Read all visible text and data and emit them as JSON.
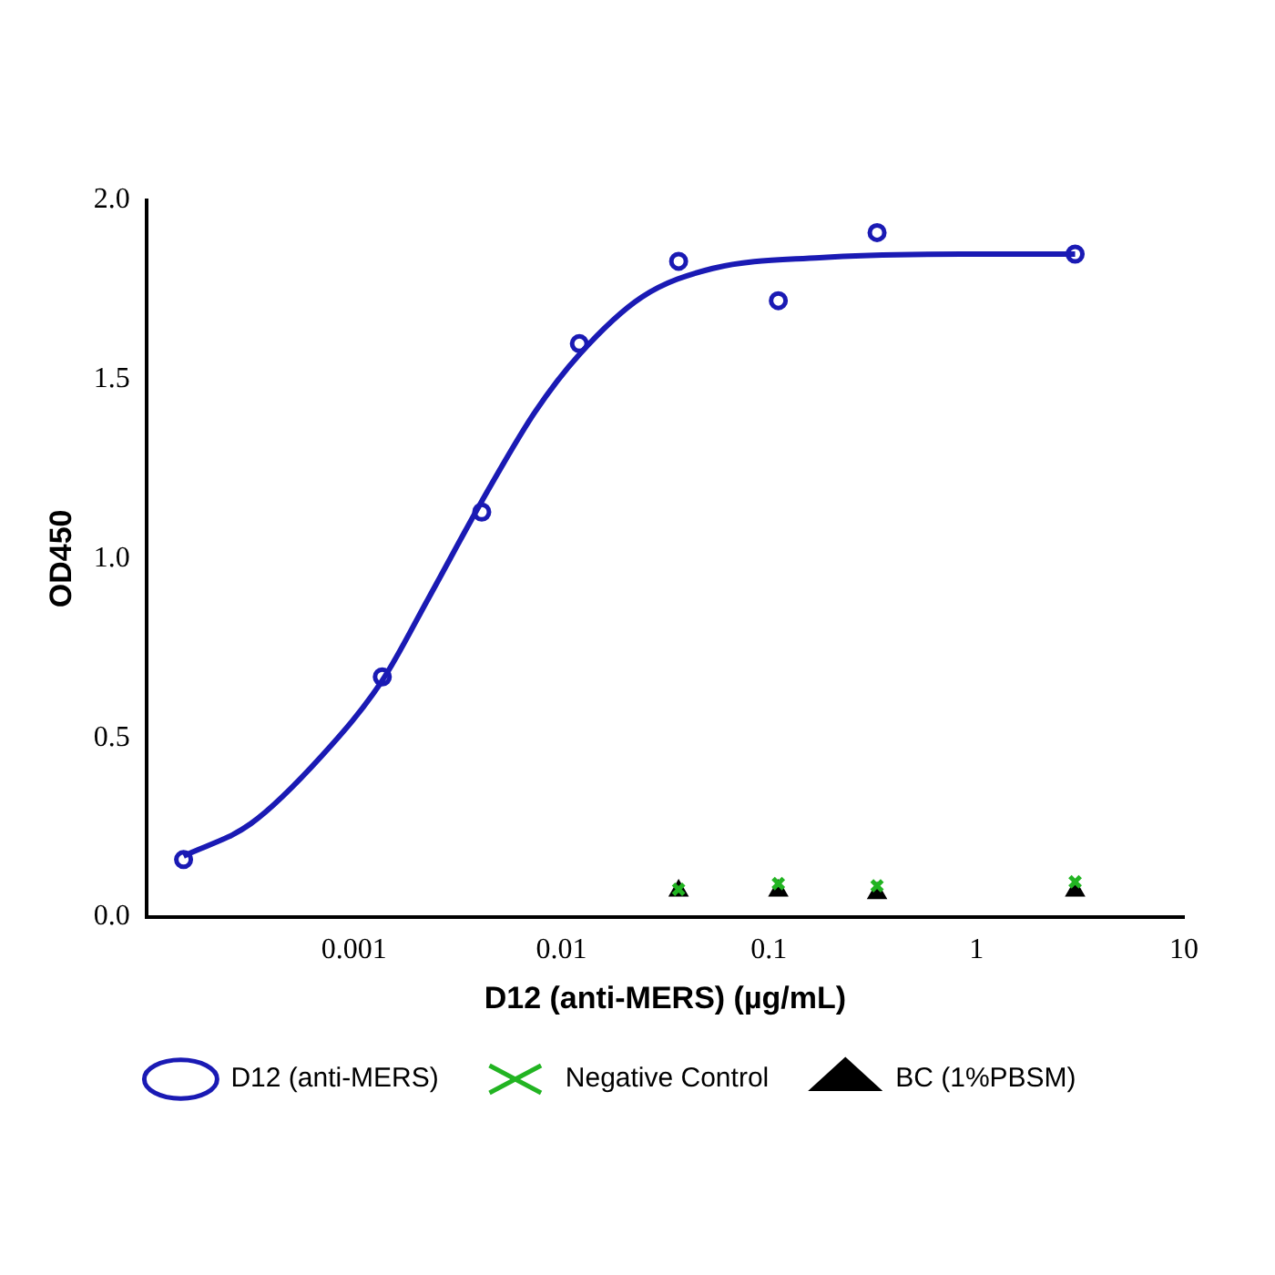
{
  "chart_data": {
    "type": "scatter",
    "xlabel": "D12 (anti-MERS) (µg/mL)",
    "ylabel": "OD450",
    "log": "x",
    "xlim": [
      0.0001,
      10
    ],
    "xticks": [
      0.001,
      0.01,
      0.1,
      1,
      10
    ],
    "ylim": [
      0,
      2
    ],
    "yticks": [
      {
        "value": 0,
        "label": "0.0"
      },
      {
        "value": 0.5,
        "label": "0.5"
      },
      {
        "value": 1,
        "label": "1.0"
      },
      {
        "value": 1.5,
        "label": "1.5"
      },
      {
        "value": 2,
        "label": "2.0"
      }
    ],
    "grid": false,
    "legend": "bottom",
    "series": [
      {
        "type": "line",
        "color": "#1a1ab4",
        "marker": "none",
        "x": [
          0.000151,
          0.000318,
          0.000701,
          0.00137,
          0.00229,
          0.00413,
          0.00747,
          0.0122,
          0.0244,
          0.0536,
          0.175,
          0.847,
          2.99
        ],
        "values": [
          0.17,
          0.26,
          0.45,
          0.66,
          0.89,
          1.16,
          1.41,
          1.57,
          1.73,
          1.81,
          1.84,
          1.85,
          1.85
        ]
      },
      {
        "name": "D12 (anti-MERS)",
        "color": "#1a1ab4",
        "marker": "circle",
        "x": [
          0.000151,
          0.00137,
          0.00413,
          0.0122,
          0.0367,
          0.111,
          0.332,
          2.99
        ],
        "values": [
          0.16,
          0.67,
          1.13,
          1.6,
          1.83,
          1.72,
          1.91,
          1.85
        ]
      },
      {
        "name": "Negative Control",
        "color": "#22b422",
        "marker": "cross",
        "x": [
          0.0367,
          0.111,
          0.332,
          2.99
        ],
        "values": [
          0.077,
          0.093,
          0.087,
          0.098
        ]
      },
      {
        "name": "BC (1%PBSM)",
        "color": "#000000",
        "marker": "triangle",
        "x": [
          0.0367,
          0.111,
          0.332,
          2.99
        ],
        "values": [
          0.073,
          0.073,
          0.066,
          0.073
        ]
      }
    ]
  }
}
